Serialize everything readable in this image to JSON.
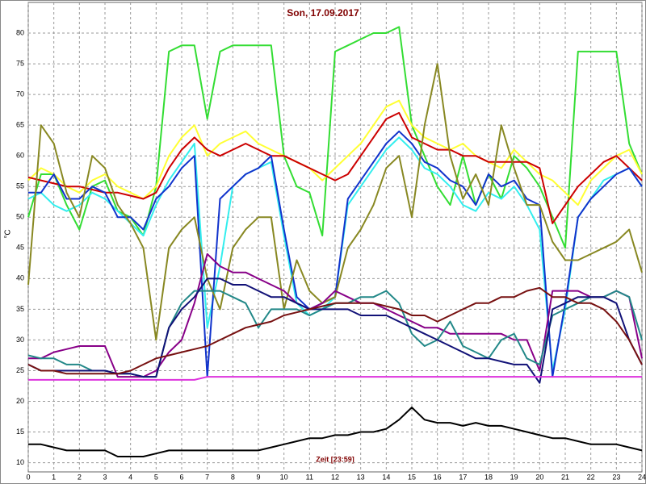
{
  "chart_data": {
    "type": "line",
    "title": "Son, 17.09.2017",
    "ylabel": "°C",
    "xlabel": "Zeit [23:59]",
    "x": [
      0,
      0.5,
      1,
      1.5,
      2,
      2.5,
      3,
      3.5,
      4,
      4.5,
      5,
      5.5,
      6,
      6.5,
      7,
      7.5,
      8,
      8.5,
      9,
      9.5,
      10,
      10.5,
      11,
      11.5,
      12,
      12.5,
      13,
      13.5,
      14,
      14.5,
      15,
      15.5,
      16,
      16.5,
      17,
      17.5,
      18,
      18.5,
      19,
      19.5,
      20,
      20.5,
      21,
      21.5,
      22,
      22.5,
      23,
      23.5,
      24
    ],
    "xlim": [
      0,
      24
    ],
    "xticks": [
      0,
      1,
      2,
      3,
      4,
      5,
      6,
      7,
      8,
      9,
      10,
      11,
      12,
      13,
      14,
      15,
      16,
      17,
      18,
      19,
      20,
      21,
      22,
      23,
      24
    ],
    "ylim": [
      8.5,
      85
    ],
    "yticks": [
      10,
      15,
      20,
      25,
      30,
      35,
      40,
      45,
      50,
      55,
      60,
      65,
      70,
      75,
      80
    ],
    "grid": true,
    "series": [
      {
        "color": "#33dd33",
        "values": [
          50,
          57,
          57,
          52,
          48,
          55,
          56,
          51,
          50,
          47,
          55,
          77,
          78,
          78,
          66,
          77,
          78,
          78,
          78,
          78,
          60,
          55,
          54,
          47,
          77,
          78,
          79,
          80,
          80,
          81,
          65,
          60,
          55,
          52,
          60,
          52,
          57,
          53,
          60,
          58,
          55,
          50,
          45,
          77,
          77,
          77,
          77,
          62,
          57
        ]
      },
      {
        "color": "#ffff33",
        "values": [
          56,
          58,
          57,
          55,
          54,
          56,
          57,
          55,
          54,
          53,
          55,
          60,
          63,
          65,
          60,
          62,
          63,
          64,
          62,
          61,
          60,
          59,
          58,
          56,
          58,
          60,
          62,
          65,
          68,
          69,
          65,
          63,
          62,
          61,
          62,
          60,
          59,
          58,
          61,
          59,
          57,
          56,
          54,
          52,
          56,
          58,
          60,
          61,
          57
        ]
      },
      {
        "color": "#cc0000",
        "values": [
          56.5,
          56,
          55.5,
          55,
          55,
          54.5,
          54,
          54,
          53.5,
          53,
          54,
          58,
          61,
          63,
          61,
          60,
          61,
          62,
          61,
          60,
          60,
          59,
          58,
          57,
          56,
          57,
          60,
          63,
          66,
          67,
          63,
          62,
          61,
          61,
          60,
          60,
          59,
          59,
          59,
          59,
          58,
          49,
          52,
          55,
          57,
          59,
          60,
          58,
          56
        ]
      },
      {
        "color": "#33eeee",
        "values": [
          53,
          54,
          52,
          51,
          52,
          54,
          53,
          51,
          49,
          47,
          52,
          56,
          59,
          62,
          32,
          42,
          55,
          57,
          58,
          59,
          47,
          36,
          34,
          35,
          37,
          52,
          55,
          58,
          61,
          63,
          61,
          58,
          57,
          55,
          52,
          51,
          54,
          53,
          55,
          52,
          48,
          25,
          35,
          50,
          53,
          56,
          57,
          58,
          55
        ]
      },
      {
        "color": "#1133cc",
        "values": [
          54,
          54,
          57,
          53,
          53,
          55,
          54,
          50,
          50,
          48,
          53,
          55,
          58,
          60,
          24,
          53,
          55,
          57,
          58,
          60,
          48,
          37,
          35,
          36,
          37,
          53,
          56,
          59,
          62,
          64,
          62,
          59,
          58,
          56,
          55,
          52,
          57,
          55,
          56,
          53,
          52,
          24,
          36,
          50,
          53,
          55,
          57,
          58,
          55
        ]
      },
      {
        "color": "#888822",
        "values": [
          39,
          65,
          62,
          54,
          50,
          60,
          58,
          52,
          49,
          45,
          30,
          45,
          48,
          50,
          40,
          35,
          45,
          48,
          50,
          50,
          35,
          43,
          38,
          36,
          37,
          45,
          48,
          52,
          58,
          60,
          50,
          65,
          75,
          60,
          53,
          57,
          52,
          65,
          58,
          52,
          52,
          46,
          43,
          43,
          44,
          45,
          46,
          48,
          41
        ]
      },
      {
        "color": "#880088",
        "values": [
          27,
          27,
          28,
          28.5,
          29,
          29,
          29,
          24,
          24,
          24,
          25,
          28,
          30,
          36,
          44,
          42,
          41,
          41,
          40,
          39,
          38,
          36,
          35,
          36,
          38,
          37,
          36,
          36,
          35,
          34,
          33,
          32,
          32,
          31,
          31,
          31,
          31,
          31,
          30,
          30,
          25,
          38,
          38,
          38,
          37,
          37,
          38,
          37,
          27
        ]
      },
      {
        "color": "#228888",
        "values": [
          27.5,
          27,
          27,
          26,
          26,
          25,
          25,
          24.5,
          24.5,
          24,
          24,
          32,
          36,
          38,
          38,
          38,
          37,
          36,
          32,
          35,
          35,
          35,
          34,
          35,
          36,
          36,
          37,
          37,
          38,
          36,
          31,
          29,
          30,
          33,
          29,
          28,
          27,
          30,
          31,
          27,
          26,
          34,
          35,
          36,
          37,
          37,
          38,
          37,
          30
        ]
      },
      {
        "color": "#111177",
        "values": [
          26,
          25,
          25,
          25,
          25,
          25,
          25,
          24.5,
          24.5,
          24,
          24,
          32,
          35,
          37,
          40,
          40,
          39,
          39,
          38,
          37,
          37,
          36,
          35,
          35,
          35,
          35,
          34,
          34,
          34,
          33,
          32,
          31,
          30,
          29,
          28,
          27,
          27,
          26.5,
          26,
          26,
          23,
          35,
          36,
          37,
          37,
          37,
          36,
          30,
          26
        ]
      },
      {
        "color": "#771111",
        "values": [
          26,
          25,
          25,
          24.5,
          24.5,
          24.5,
          24.5,
          24.5,
          25,
          26,
          27,
          27.5,
          28,
          28.5,
          29,
          30,
          31,
          32,
          32.5,
          33,
          34,
          34.5,
          35,
          35.5,
          36,
          36,
          36,
          36,
          35.5,
          35,
          34,
          34,
          33,
          34,
          35,
          36,
          36,
          37,
          37,
          38,
          38.5,
          37,
          37,
          36,
          36,
          35,
          33,
          30,
          26
        ]
      },
      {
        "color": "#dd33dd",
        "values": [
          23.5,
          23.5,
          23.5,
          23.5,
          23.5,
          23.5,
          23.5,
          23.5,
          23.5,
          23.5,
          23.5,
          23.5,
          23.5,
          23.5,
          24,
          24,
          24,
          24,
          24,
          24,
          24,
          24,
          24,
          24,
          24,
          24,
          24,
          24,
          24,
          24,
          24,
          24,
          24,
          24,
          24,
          24,
          24,
          24,
          24,
          24,
          24,
          24,
          24,
          24,
          24,
          24,
          24,
          24,
          24
        ]
      },
      {
        "color": "#000000",
        "values": [
          13,
          13,
          12.5,
          12,
          12,
          12,
          12,
          11,
          11,
          11,
          11.5,
          12,
          12,
          12,
          12,
          12,
          12,
          12,
          12,
          12.5,
          13,
          13.5,
          14,
          14,
          14.5,
          14.5,
          15,
          15,
          15.5,
          17,
          19,
          17,
          16.5,
          16.5,
          16,
          16.5,
          16,
          16,
          15.5,
          15,
          14.5,
          14,
          14,
          13.5,
          13,
          13,
          13,
          12.5,
          12
        ]
      }
    ]
  }
}
